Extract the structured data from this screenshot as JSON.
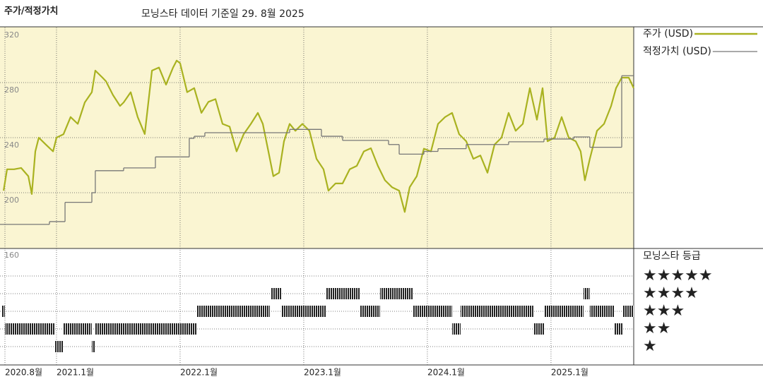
{
  "chart_data": {
    "type": "line",
    "title": "주가/적정가치",
    "subtitle": "모닝스타 데이터 기준일 29. 8월 2025",
    "xlim": [
      2020.543,
      2025.669
    ],
    "ylim": [
      160,
      320
    ],
    "yticks": [
      160,
      200,
      240,
      280,
      320
    ],
    "xticks": [
      {
        "value": 2020.583,
        "label": "2020.8월"
      },
      {
        "value": 2021,
        "label": "2021.1월"
      },
      {
        "value": 2022,
        "label": "2022.1월"
      },
      {
        "value": 2023,
        "label": "2023.1월"
      },
      {
        "value": 2024,
        "label": "2024.1월"
      },
      {
        "value": 2025,
        "label": "2025.1월"
      }
    ],
    "grid": true,
    "series": [
      {
        "name": "주가 (USD)",
        "color": "#a9b220",
        "x": [
          2020.572,
          2020.6,
          2020.657,
          2020.714,
          2020.772,
          2020.8,
          2020.829,
          2020.857,
          2020.914,
          2020.972,
          2021.0,
          2021.057,
          2021.114,
          2021.172,
          2021.229,
          2021.286,
          2021.314,
          2021.372,
          2021.4,
          2021.457,
          2021.514,
          2021.543,
          2021.6,
          2021.657,
          2021.714,
          2021.772,
          2021.829,
          2021.886,
          2021.943,
          2021.972,
          2022.0,
          2022.057,
          2022.114,
          2022.172,
          2022.229,
          2022.286,
          2022.343,
          2022.4,
          2022.457,
          2022.514,
          2022.572,
          2022.629,
          2022.669,
          2022.714,
          2022.754,
          2022.8,
          2022.84,
          2022.886,
          2022.932,
          2022.989,
          2023.046,
          2023.103,
          2023.16,
          2023.2,
          2023.257,
          2023.314,
          2023.372,
          2023.429,
          2023.486,
          2023.543,
          2023.6,
          2023.657,
          2023.714,
          2023.772,
          2023.817,
          2023.857,
          2023.914,
          2023.972,
          2024.029,
          2024.086,
          2024.143,
          2024.2,
          2024.257,
          2024.314,
          2024.372,
          2024.429,
          2024.486,
          2024.543,
          2024.6,
          2024.657,
          2024.714,
          2024.772,
          2024.829,
          2024.886,
          2024.932,
          2024.972,
          2025.029,
          2025.086,
          2025.143,
          2025.2,
          2025.24,
          2025.274,
          2025.314,
          2025.372,
          2025.429,
          2025.486,
          2025.526,
          2025.572,
          2025.629,
          2025.669
        ],
        "values": [
          201.5,
          217,
          217,
          218,
          212,
          199,
          230,
          240,
          235,
          230,
          240,
          242.5,
          255,
          250,
          265.6,
          273,
          288.7,
          283.6,
          281,
          271,
          263,
          265.6,
          273,
          255,
          242.6,
          288.7,
          291,
          278.5,
          291,
          296,
          294,
          273,
          276,
          258,
          266,
          268,
          250,
          248,
          230,
          242.5,
          250,
          258,
          250,
          230,
          212,
          214.5,
          237.4,
          250,
          245,
          250,
          245,
          224.6,
          217,
          201.5,
          206.7,
          206.7,
          217,
          219.5,
          230,
          232.3,
          219.5,
          209,
          204,
          201.5,
          186,
          204,
          212,
          232,
          230,
          250,
          255,
          258,
          242.5,
          237.4,
          224.6,
          227,
          214.5,
          235,
          240,
          258,
          245,
          250,
          276,
          253,
          276,
          237.4,
          240,
          255,
          240,
          237.4,
          230,
          209,
          224.6,
          245,
          250,
          263,
          276,
          283.6,
          283.6,
          276
        ]
      },
      {
        "name": "적정가치 (USD)",
        "color": "#777777",
        "step": "after",
        "x": [
          2020.543,
          2020.943,
          2021.069,
          2021.286,
          2021.314,
          2021.543,
          2021.8,
          2022.074,
          2022.114,
          2022.2,
          2022.886,
          2023.143,
          2023.314,
          2023.686,
          2023.772,
          2023.972,
          2024.086,
          2024.314,
          2024.657,
          2024.943,
          2025.183,
          2025.314,
          2025.572
        ],
        "values": [
          177,
          179,
          193,
          200,
          216,
          218,
          226,
          239.5,
          241,
          243.6,
          246,
          241,
          238,
          235,
          228,
          230,
          232,
          235,
          237,
          239,
          240.5,
          233,
          285
        ]
      }
    ],
    "rating": {
      "title": "모닝스타 등급",
      "levels": [
        {
          "value": 5,
          "label": "★★★★★"
        },
        {
          "value": 4,
          "label": "★★★★"
        },
        {
          "value": 3,
          "label": "★★★"
        },
        {
          "value": 2,
          "label": "★★"
        },
        {
          "value": 1,
          "label": "★"
        }
      ],
      "periods": [
        {
          "start": 2020.56,
          "end": 2020.583,
          "stars": 3
        },
        {
          "start": 2020.583,
          "end": 2020.989,
          "stars": 2
        },
        {
          "start": 2020.989,
          "end": 2021.057,
          "stars": 1
        },
        {
          "start": 2021.057,
          "end": 2021.286,
          "stars": 2
        },
        {
          "start": 2021.286,
          "end": 2021.314,
          "stars": 1
        },
        {
          "start": 2021.314,
          "end": 2022.132,
          "stars": 2
        },
        {
          "start": 2022.132,
          "end": 2022.726,
          "stars": 3
        },
        {
          "start": 2022.732,
          "end": 2022.817,
          "stars": 4
        },
        {
          "start": 2022.817,
          "end": 2023.183,
          "stars": 3
        },
        {
          "start": 2023.183,
          "end": 2023.457,
          "stars": 4
        },
        {
          "start": 2023.457,
          "end": 2023.617,
          "stars": 3
        },
        {
          "start": 2023.617,
          "end": 2023.886,
          "stars": 4
        },
        {
          "start": 2023.886,
          "end": 2024.2,
          "stars": 3
        },
        {
          "start": 2024.2,
          "end": 2024.269,
          "stars": 2
        },
        {
          "start": 2024.269,
          "end": 2024.857,
          "stars": 3
        },
        {
          "start": 2024.857,
          "end": 2024.943,
          "stars": 2
        },
        {
          "start": 2024.943,
          "end": 2025.263,
          "stars": 3
        },
        {
          "start": 2025.263,
          "end": 2025.314,
          "stars": 4
        },
        {
          "start": 2025.314,
          "end": 2025.514,
          "stars": 3
        },
        {
          "start": 2025.514,
          "end": 2025.583,
          "stars": 2
        },
        {
          "start": 2025.583,
          "end": 2025.669,
          "stars": 3
        }
      ]
    }
  }
}
